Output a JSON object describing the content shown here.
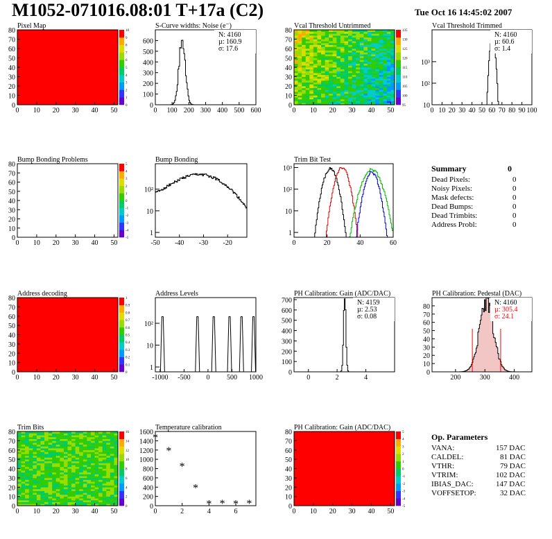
{
  "header": {
    "title": "M1052-071016.08:01 T+17a (C2)",
    "date": "Tue Oct 16 14:45:02 2007"
  },
  "colors": {
    "accent": "#ff0000",
    "frame": "#000000",
    "palette": [
      "#6600cc",
      "#3333ff",
      "#0099ff",
      "#00cccc",
      "#00cc66",
      "#33cc00",
      "#99dd00",
      "#dddd00",
      "#ffaa00",
      "#ff0000"
    ]
  },
  "summary": {
    "title": "Summary",
    "value": "0",
    "rows": [
      {
        "label": "Dead Pixels:",
        "value": "0"
      },
      {
        "label": "Noisy Pixels:",
        "value": "0"
      },
      {
        "label": "Mask defects:",
        "value": "0"
      },
      {
        "label": "Dead Bumps:",
        "value": "0"
      },
      {
        "label": "Dead Trimbits:",
        "value": "0"
      },
      {
        "label": "Address Probl:",
        "value": "0"
      }
    ]
  },
  "op_params": {
    "title": "Op. Parameters",
    "rows": [
      {
        "label": "VANA:",
        "value": "157 DAC"
      },
      {
        "label": "CALDEL:",
        "value": "81 DAC"
      },
      {
        "label": "VTHR:",
        "value": "79 DAC"
      },
      {
        "label": "VTRIM:",
        "value": "102 DAC"
      },
      {
        "label": "IBIAS_DAC:",
        "value": "147 DAC"
      },
      {
        "label": "VOFFSETOP:",
        "value": "32 DAC"
      }
    ]
  },
  "chart_data": [
    {
      "id": "p1",
      "type": "heatmap",
      "title": "Pixel Map",
      "xlim": [
        0,
        52
      ],
      "ylim": [
        0,
        80
      ],
      "xticks": [
        0,
        10,
        20,
        30,
        40,
        50
      ],
      "yticks": [
        0,
        10,
        20,
        30,
        40,
        50,
        60,
        70,
        80
      ],
      "fill": "uniform-max",
      "z_ticks": [
        "0",
        "1",
        "2",
        "3",
        "4",
        "5",
        "6",
        "7",
        "8",
        "9",
        "10"
      ]
    },
    {
      "id": "p2",
      "type": "line",
      "title": "S-Curve widths: Noise (e⁻)",
      "xlim": [
        0,
        600
      ],
      "ylim": [
        0,
        700
      ],
      "xticks": [
        0,
        100,
        200,
        300,
        400,
        500,
        600
      ],
      "yticks": [
        0,
        100,
        200,
        300,
        400,
        500,
        600
      ],
      "stats": [
        "N: 4160",
        "µ: 160.9",
        "σ: 17.6"
      ],
      "series": [
        {
          "peak": 160,
          "sigma": 18,
          "amp": 660
        }
      ]
    },
    {
      "id": "p3",
      "type": "heatmap",
      "title": "Vcal Threshold Untrimmed",
      "xlim": [
        0,
        52
      ],
      "ylim": [
        0,
        80
      ],
      "xticks": [
        0,
        10,
        20,
        30,
        40,
        50
      ],
      "yticks": [
        0,
        10,
        20,
        30,
        40,
        50,
        60,
        70,
        80
      ],
      "fill": "gradient-noise",
      "z_ticks": [
        "95",
        "100",
        "105",
        "110",
        "115",
        "120",
        "125",
        "130",
        "135"
      ]
    },
    {
      "id": "p4",
      "type": "line",
      "title": "Vcal Threshold Trimmed",
      "log": true,
      "xlim": [
        0,
        100
      ],
      "ylim": [
        1,
        3000
      ],
      "xticks": [
        0,
        10,
        20,
        30,
        40,
        50,
        60,
        70,
        80,
        90,
        100
      ],
      "ylabels": [
        "10",
        "10²",
        "10³"
      ],
      "stats": [
        "N: 4160",
        "µ: 60.6",
        "σ: 1.4"
      ],
      "series": [
        {
          "peak": 60.6,
          "sigma": 1.5,
          "amp": 1500
        }
      ]
    },
    {
      "id": "p5",
      "type": "heatmap",
      "title": "Bump Bonding Problems",
      "xlim": [
        0,
        52
      ],
      "ylim": [
        0,
        80
      ],
      "xticks": [
        0,
        10,
        20,
        30,
        40,
        50
      ],
      "yticks": [
        0,
        10,
        20,
        30,
        40,
        50,
        60,
        70,
        80
      ],
      "fill": "empty",
      "z_ticks": [
        "-5",
        "-4",
        "-3",
        "-2",
        "-1",
        "0",
        "1",
        "2",
        "3",
        "4",
        "5"
      ]
    },
    {
      "id": "p6",
      "type": "line",
      "title": "Bump Bonding",
      "log": true,
      "xlim": [
        -50,
        -12
      ],
      "ylim": [
        0.6,
        1500
      ],
      "xticks": [
        -50,
        -40,
        -30,
        -20
      ],
      "ylabels": [
        "1",
        "10",
        "10²"
      ],
      "series": [
        {
          "peak": -31,
          "sigma": 7,
          "amp": 400
        }
      ]
    },
    {
      "id": "p7",
      "type": "line",
      "title": "Trim Bit Test",
      "log": true,
      "xlim": [
        0,
        60
      ],
      "ylim": [
        0.6,
        1500
      ],
      "xticks": [
        0,
        20,
        40,
        60
      ],
      "ylabels": [
        "1",
        "10",
        "10²",
        "10³"
      ],
      "series": [
        {
          "name": "",
          "color": "#000000",
          "peak": 22,
          "sigma": 2.5,
          "amp": 900
        },
        {
          "name": "",
          "color": "#dd0000",
          "peak": 29,
          "sigma": 2.5,
          "amp": 1000
        },
        {
          "name": "",
          "color": "#0000cc",
          "peak": 47,
          "sigma": 2.5,
          "amp": 600
        },
        {
          "name": "",
          "color": "#00bb00",
          "peak": 47,
          "sigma": 3.5,
          "amp": 800
        }
      ]
    },
    {
      "id": "p9",
      "type": "heatmap",
      "title": "Address decoding",
      "xlim": [
        0,
        52
      ],
      "ylim": [
        0,
        80
      ],
      "xticks": [
        0,
        10,
        20,
        30,
        40,
        50
      ],
      "yticks": [
        0,
        10,
        20,
        30,
        40,
        50,
        60,
        70,
        80
      ],
      "fill": "uniform-max",
      "z_ticks": [
        "0",
        "0.1",
        "0.2",
        "0.3",
        "0.4",
        "0.5",
        "0.6",
        "0.7",
        "0.8",
        "0.9",
        "1"
      ]
    },
    {
      "id": "p10",
      "type": "line",
      "title": "Address Levels",
      "log": true,
      "xlim": [
        -1100,
        1000
      ],
      "ylim": [
        0.6,
        1500
      ],
      "xticks": [
        -1000,
        -500,
        0,
        500,
        1000
      ],
      "ylabels": [
        "1",
        "10",
        "10²"
      ],
      "peaks": [
        -950,
        -220,
        120,
        450,
        700,
        950
      ]
    },
    {
      "id": "p11",
      "type": "line",
      "title": "PH Calibration: Gain (ADC/DAC)",
      "xlim": [
        -1,
        6
      ],
      "ylim": [
        0,
        720
      ],
      "xticks": [
        0,
        2,
        4
      ],
      "yticks": [
        0,
        100,
        200,
        300,
        400,
        500,
        600,
        700
      ],
      "stats": [
        "N: 4159",
        "µ: 2.53",
        "σ: 0.08"
      ],
      "series": [
        {
          "peak": 2.53,
          "sigma": 0.08,
          "amp": 680
        }
      ]
    },
    {
      "id": "p12",
      "type": "line",
      "title": "PH Calibration: Pedestal (DAC)",
      "xlim": [
        120,
        460
      ],
      "ylim": [
        0,
        90
      ],
      "xticks": [
        200,
        300,
        400
      ],
      "yticks": [
        0,
        10,
        20,
        30,
        40,
        50,
        60,
        70,
        80
      ],
      "stats": [
        "N: 4160",
        "µ: 305.4",
        "σ: 24.1"
      ],
      "series": [
        {
          "peak": 305.4,
          "sigma": 24.1,
          "amp": 85
        }
      ]
    },
    {
      "id": "p13",
      "type": "heatmap",
      "title": "Trim Bits",
      "xlim": [
        0,
        52
      ],
      "ylim": [
        0,
        80
      ],
      "xticks": [
        0,
        10,
        20,
        30,
        40,
        50
      ],
      "yticks": [
        0,
        10,
        20,
        30,
        40,
        50,
        60,
        70,
        80
      ],
      "fill": "noise-mid",
      "z_ticks": [
        "0",
        "2",
        "4",
        "6",
        "8",
        "10",
        "12",
        "14",
        "16"
      ]
    },
    {
      "id": "p14",
      "type": "scatter",
      "title": "Temperature calibration",
      "xlim": [
        0,
        7.5
      ],
      "ylim": [
        0,
        1600
      ],
      "xticks": [
        0,
        2,
        4,
        6
      ],
      "yticks": [
        0,
        200,
        400,
        600,
        800,
        1000,
        1200,
        1400,
        1600
      ],
      "points": [
        {
          "x": 0,
          "y": 1480
        },
        {
          "x": 1,
          "y": 1200
        },
        {
          "x": 2,
          "y": 860
        },
        {
          "x": 3,
          "y": 400
        },
        {
          "x": 4,
          "y": 50
        },
        {
          "x": 5,
          "y": 60
        },
        {
          "x": 6,
          "y": 50
        },
        {
          "x": 7,
          "y": 60
        }
      ]
    },
    {
      "id": "p15",
      "type": "heatmap",
      "title": "PH Calibration: Gain (ADC/DAC)",
      "xlim": [
        0,
        52
      ],
      "ylim": [
        0,
        80
      ],
      "xticks": [
        0,
        10,
        20,
        30,
        40,
        50
      ],
      "yticks": [
        0,
        10,
        20,
        30,
        40,
        50,
        60,
        70,
        80
      ],
      "fill": "uniform-max",
      "z_ticks": [
        "-5",
        "-4",
        "-3",
        "-2",
        "-1",
        "0",
        "1",
        "2",
        "3",
        "4",
        "5"
      ]
    }
  ]
}
